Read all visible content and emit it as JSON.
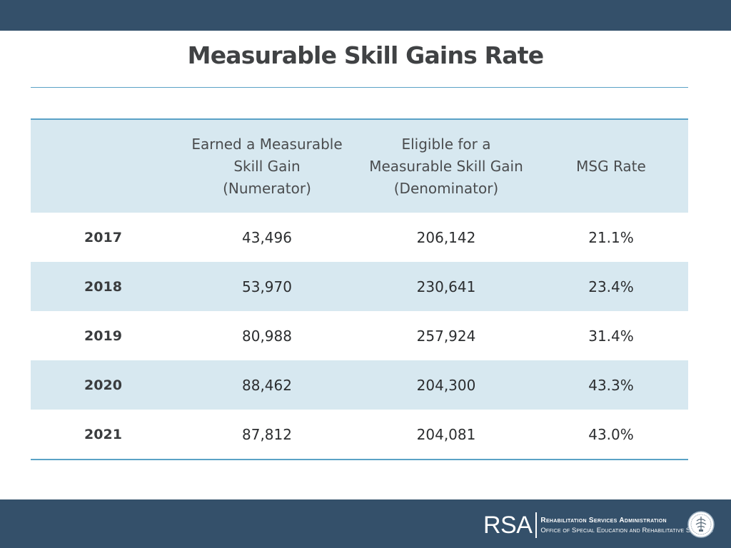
{
  "slide": {
    "title": "Measurable Skill Gains Rate"
  },
  "table": {
    "headers": [
      "",
      "Earned a Measurable\nSkill Gain\n(Numerator)",
      "Eligible for a\nMeasurable Skill Gain\n(Denominator)",
      "MSG Rate"
    ],
    "rows": [
      {
        "year": "2017",
        "numerator": "43,496",
        "denominator": "206,142",
        "rate": "21.1%"
      },
      {
        "year": "2018",
        "numerator": "53,970",
        "denominator": "230,641",
        "rate": "23.4%"
      },
      {
        "year": "2019",
        "numerator": "80,988",
        "denominator": "257,924",
        "rate": "31.4%"
      },
      {
        "year": "2020",
        "numerator": "88,462",
        "denominator": "204,300",
        "rate": "43.3%"
      },
      {
        "year": "2021",
        "numerator": "87,812",
        "denominator": "204,081",
        "rate": "43.0%"
      }
    ]
  },
  "footer": {
    "logo_mark": "RSA",
    "logo_line1": "Rehabilitation Services Administration",
    "logo_line2": "Office of Special Education and Rehabilitative Services",
    "seal_icon": "department-seal-icon"
  },
  "colors": {
    "bar": "#34506a",
    "accent_rule": "#5aa2c6",
    "row_shade": "#d7e8f0"
  }
}
